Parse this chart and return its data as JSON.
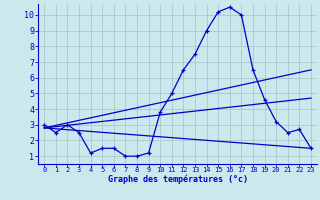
{
  "xlabel": "Graphe des températures (°c)",
  "background_color": "#cce8ec",
  "grid_color": "#aac8cc",
  "line_color": "#0000cc",
  "xlim": [
    -0.5,
    23.5
  ],
  "ylim": [
    0.5,
    10.7
  ],
  "x_ticks": [
    0,
    1,
    2,
    3,
    4,
    5,
    6,
    7,
    8,
    9,
    10,
    11,
    12,
    13,
    14,
    15,
    16,
    17,
    18,
    19,
    20,
    21,
    22,
    23
  ],
  "y_ticks": [
    1,
    2,
    3,
    4,
    5,
    6,
    7,
    8,
    9,
    10
  ],
  "line1_x": [
    0,
    1,
    2,
    3,
    4,
    5,
    6,
    7,
    8,
    9,
    10,
    11,
    12,
    13,
    14,
    15,
    16,
    17,
    18,
    19,
    20,
    21,
    22,
    23
  ],
  "line1_y": [
    3.0,
    2.5,
    3.0,
    2.5,
    1.2,
    1.5,
    1.5,
    1.0,
    1.0,
    1.2,
    3.8,
    5.0,
    6.5,
    7.5,
    9.0,
    10.2,
    10.5,
    10.0,
    6.5,
    4.6,
    3.2,
    2.5,
    2.7,
    1.5
  ],
  "line2_x": [
    0,
    23
  ],
  "line2_y": [
    2.8,
    6.5
  ],
  "line3_x": [
    0,
    23
  ],
  "line3_y": [
    2.8,
    1.5
  ],
  "line4_x": [
    0,
    23
  ],
  "line4_y": [
    2.8,
    4.7
  ]
}
